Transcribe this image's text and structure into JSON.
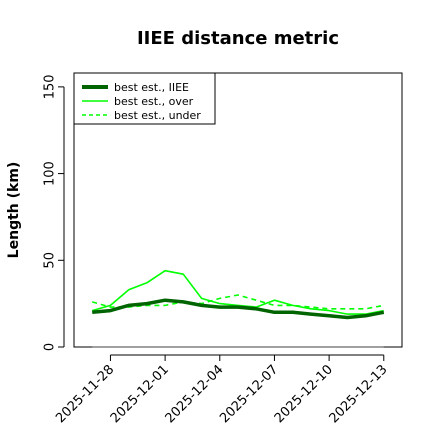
{
  "chart_data": {
    "type": "line",
    "title": "IIEE distance metric",
    "xlabel": "",
    "ylabel": "Length (km)",
    "ylim": [
      0,
      158
    ],
    "xlim": [
      "2025-11-26",
      "2025-12-14"
    ],
    "yticks": [
      0,
      50,
      100,
      150
    ],
    "xticks": [
      "2025-11-28",
      "2025-12-01",
      "2025-12-04",
      "2025-12-07",
      "2025-12-10",
      "2025-12-13"
    ],
    "legend_position": "top-left",
    "grid": false,
    "x": [
      "2025-11-27",
      "2025-11-28",
      "2025-11-29",
      "2025-11-30",
      "2025-12-01",
      "2025-12-02",
      "2025-12-03",
      "2025-12-04",
      "2025-12-05",
      "2025-12-06",
      "2025-12-07",
      "2025-12-08",
      "2025-12-09",
      "2025-12-10",
      "2025-12-11",
      "2025-12-12",
      "2025-12-13"
    ],
    "series": [
      {
        "name": "best est., IIEE",
        "color": "#006400",
        "style": "solid-thick",
        "values": [
          20,
          21,
          24,
          25,
          27,
          26,
          24,
          23,
          23,
          22,
          20,
          20,
          19,
          18,
          17,
          18,
          20
        ]
      },
      {
        "name": "best est., over",
        "color": "#00ff00",
        "style": "solid",
        "values": [
          21,
          24,
          33,
          37,
          44,
          42,
          28,
          25,
          24,
          23,
          27,
          24,
          22,
          21,
          19,
          19,
          21
        ]
      },
      {
        "name": "best est., under",
        "color": "#00ff00",
        "style": "dashed",
        "values": [
          26,
          23,
          23,
          24,
          24,
          26,
          25,
          28,
          30,
          27,
          24,
          24,
          23,
          22,
          22,
          22,
          24
        ]
      }
    ],
    "reference_line": {
      "value": 0,
      "color": "#808080"
    }
  }
}
